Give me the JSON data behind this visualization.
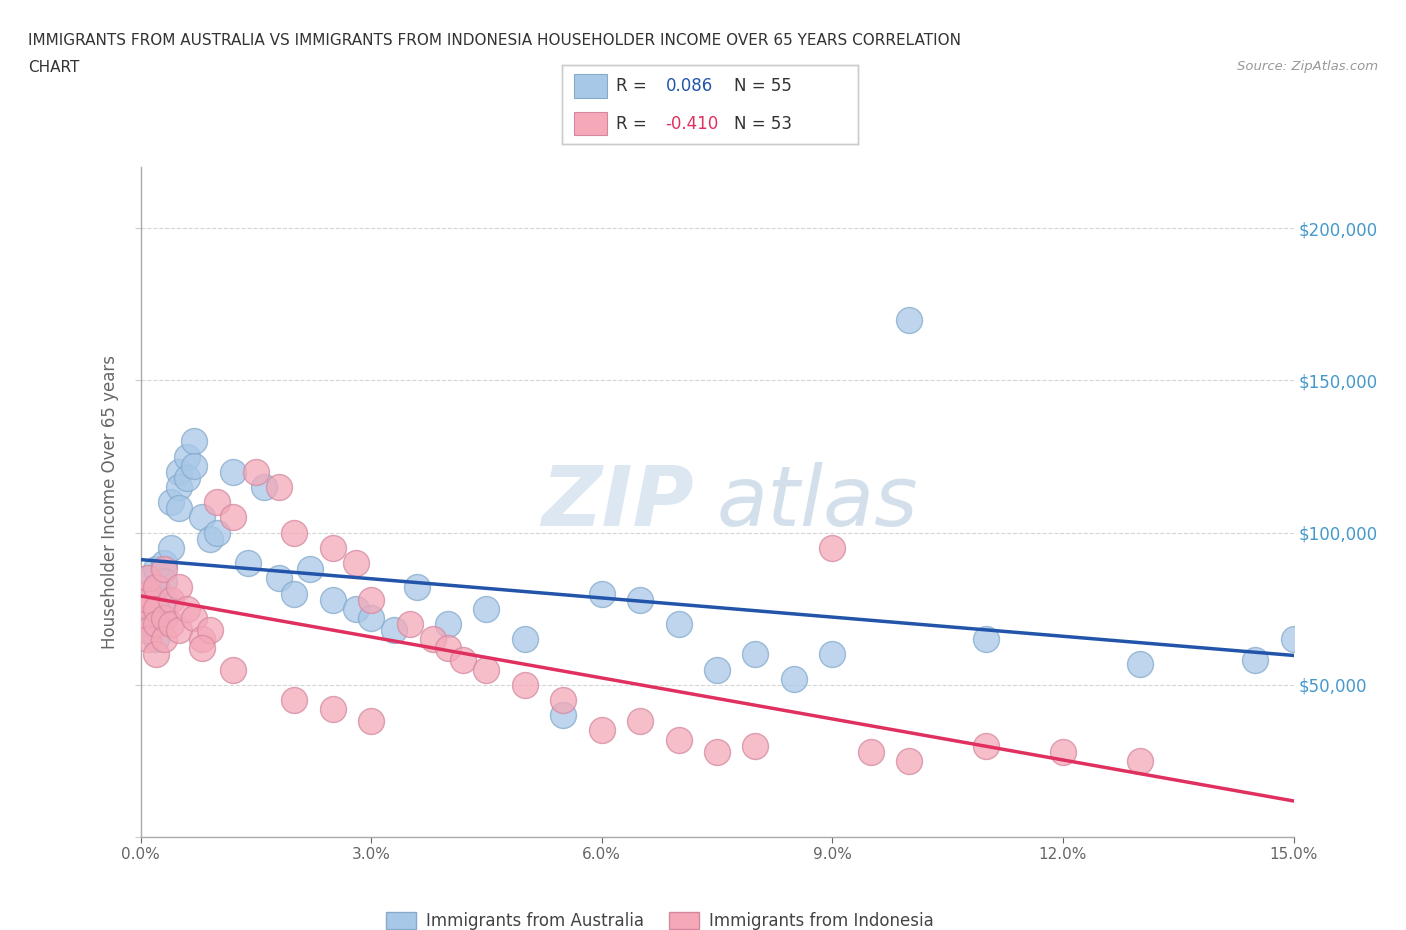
{
  "title_line1": "IMMIGRANTS FROM AUSTRALIA VS IMMIGRANTS FROM INDONESIA HOUSEHOLDER INCOME OVER 65 YEARS CORRELATION",
  "title_line2": "CHART",
  "source": "Source: ZipAtlas.com",
  "ylabel": "Householder Income Over 65 years",
  "xlim": [
    0.0,
    0.15
  ],
  "ylim": [
    0,
    220000
  ],
  "xticks": [
    0.0,
    0.03,
    0.06,
    0.09,
    0.12,
    0.15
  ],
  "xticklabels": [
    "0.0%",
    "3.0%",
    "6.0%",
    "9.0%",
    "12.0%",
    "15.0%"
  ],
  "yticks": [
    0,
    50000,
    100000,
    150000,
    200000
  ],
  "yticklabels": [
    "",
    "$50,000",
    "$100,000",
    "$150,000",
    "$200,000"
  ],
  "australia_color": "#a8c8e8",
  "indonesia_color": "#f4a8b8",
  "australia_edge_color": "#85aacc",
  "indonesia_edge_color": "#d488a0",
  "australia_line_color": "#2255aa",
  "indonesia_line_color": "#e03060",
  "R_australia": 0.086,
  "N_australia": 55,
  "R_indonesia": -0.41,
  "N_indonesia": 53,
  "watermark_zip": "ZIP",
  "watermark_atlas": "atlas",
  "australia_x": [
    0.001,
    0.001,
    0.001,
    0.001,
    0.001,
    0.001,
    0.001,
    0.002,
    0.002,
    0.002,
    0.002,
    0.002,
    0.003,
    0.003,
    0.003,
    0.003,
    0.004,
    0.004,
    0.005,
    0.005,
    0.005,
    0.006,
    0.006,
    0.007,
    0.007,
    0.008,
    0.009,
    0.01,
    0.012,
    0.014,
    0.016,
    0.018,
    0.02,
    0.022,
    0.025,
    0.028,
    0.03,
    0.033,
    0.036,
    0.04,
    0.045,
    0.05,
    0.055,
    0.06,
    0.065,
    0.07,
    0.075,
    0.08,
    0.085,
    0.09,
    0.1,
    0.11,
    0.13,
    0.145,
    0.15
  ],
  "australia_y": [
    80000,
    75000,
    72000,
    68000,
    85000,
    78000,
    70000,
    82000,
    76000,
    88000,
    72000,
    65000,
    90000,
    84000,
    78000,
    72000,
    110000,
    95000,
    120000,
    115000,
    108000,
    125000,
    118000,
    130000,
    122000,
    105000,
    98000,
    100000,
    120000,
    90000,
    115000,
    85000,
    80000,
    88000,
    78000,
    75000,
    72000,
    68000,
    82000,
    70000,
    75000,
    65000,
    40000,
    80000,
    78000,
    70000,
    55000,
    60000,
    52000,
    60000,
    170000,
    65000,
    57000,
    58000,
    65000
  ],
  "indonesia_x": [
    0.001,
    0.001,
    0.001,
    0.001,
    0.001,
    0.001,
    0.001,
    0.002,
    0.002,
    0.002,
    0.002,
    0.003,
    0.003,
    0.003,
    0.004,
    0.004,
    0.005,
    0.005,
    0.006,
    0.007,
    0.008,
    0.009,
    0.01,
    0.012,
    0.015,
    0.018,
    0.02,
    0.025,
    0.028,
    0.03,
    0.035,
    0.038,
    0.04,
    0.042,
    0.045,
    0.05,
    0.055,
    0.06,
    0.065,
    0.07,
    0.075,
    0.08,
    0.09,
    0.095,
    0.1,
    0.11,
    0.12,
    0.13,
    0.008,
    0.012,
    0.02,
    0.03,
    0.025
  ],
  "indonesia_y": [
    80000,
    76000,
    72000,
    68000,
    65000,
    78000,
    85000,
    82000,
    75000,
    70000,
    60000,
    88000,
    72000,
    65000,
    78000,
    70000,
    82000,
    68000,
    75000,
    72000,
    65000,
    68000,
    110000,
    105000,
    120000,
    115000,
    100000,
    95000,
    90000,
    78000,
    70000,
    65000,
    62000,
    58000,
    55000,
    50000,
    45000,
    35000,
    38000,
    32000,
    28000,
    30000,
    95000,
    28000,
    25000,
    30000,
    28000,
    25000,
    62000,
    55000,
    45000,
    38000,
    42000
  ],
  "background_color": "#ffffff",
  "grid_color": "#cccccc",
  "title_color": "#333333",
  "tick_color": "#666666",
  "right_ytick_color": "#4499cc"
}
